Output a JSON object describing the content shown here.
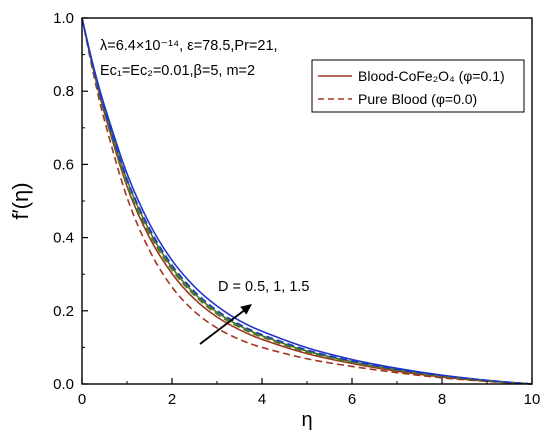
{
  "chart_data": {
    "type": "line",
    "xlabel": "η",
    "ylabel": "f′(η)",
    "xlim": [
      0,
      10
    ],
    "ylim": [
      0,
      1.0
    ],
    "xticks": [
      0,
      2,
      4,
      6,
      8,
      10
    ],
    "yticks": [
      0.0,
      0.2,
      0.4,
      0.6,
      0.8,
      1.0
    ],
    "xtick_labels": [
      "0",
      "2",
      "4",
      "6",
      "8",
      "10"
    ],
    "ytick_labels": [
      "0.0",
      "0.2",
      "0.4",
      "0.6",
      "0.8",
      "1.0"
    ],
    "grid": false,
    "legend_position": "top-right",
    "parameters_line1": "λ=6.4×10⁻¹⁴, ε=78.5,Pr=21,",
    "parameters_line2": "Ec₁=Ec₂=0.01,β=5, m=2",
    "arrow_annotation": "D = 0.5, 1, 1.5",
    "series": [
      {
        "name": "Blood-CoFe₂O₄ (φ=0.1)",
        "style": "solid",
        "color": "#a0361f",
        "D": 0.5,
        "x": [
          0,
          0.25,
          0.5,
          1,
          1.5,
          2,
          2.5,
          3,
          3.5,
          4,
          5,
          6,
          7,
          8,
          9,
          10
        ],
        "y": [
          1.0,
          0.86,
          0.74,
          0.54,
          0.4,
          0.302,
          0.232,
          0.183,
          0.148,
          0.122,
          0.083,
          0.056,
          0.035,
          0.019,
          0.008,
          0.0
        ]
      },
      {
        "style": "solid",
        "color": "#4a7a1e",
        "D": 1,
        "x": [
          0,
          0.25,
          0.5,
          1,
          1.5,
          2,
          2.5,
          3,
          3.5,
          4,
          5,
          6,
          7,
          8,
          9,
          10
        ],
        "y": [
          1.0,
          0.865,
          0.75,
          0.557,
          0.418,
          0.318,
          0.247,
          0.196,
          0.159,
          0.132,
          0.09,
          0.061,
          0.039,
          0.022,
          0.009,
          0.0
        ]
      },
      {
        "style": "solid",
        "color": "#1f35c9",
        "D": 1.5,
        "x": [
          0,
          0.25,
          0.5,
          1,
          1.5,
          2,
          2.5,
          3,
          3.5,
          4,
          5,
          6,
          7,
          8,
          9,
          10
        ],
        "y": [
          1.0,
          0.87,
          0.76,
          0.575,
          0.438,
          0.338,
          0.266,
          0.213,
          0.173,
          0.144,
          0.099,
          0.067,
          0.043,
          0.024,
          0.01,
          0.0
        ]
      },
      {
        "name": "Pure Blood (φ=0.0)",
        "style": "dashed",
        "color": "#a0361f",
        "D": 0.5,
        "x": [
          0,
          0.25,
          0.5,
          1,
          1.5,
          2,
          2.5,
          3,
          3.5,
          4,
          5,
          6,
          7,
          8,
          9,
          10
        ],
        "y": [
          1.0,
          0.85,
          0.72,
          0.51,
          0.365,
          0.265,
          0.198,
          0.153,
          0.122,
          0.1,
          0.069,
          0.048,
          0.031,
          0.017,
          0.007,
          0.0
        ]
      },
      {
        "style": "dashed",
        "color": "#4a7a1e",
        "D": 1,
        "x": [
          0,
          0.25,
          0.5,
          1,
          1.5,
          2,
          2.5,
          3,
          3.5,
          4,
          5,
          6,
          7,
          8,
          9,
          10
        ],
        "y": [
          1.0,
          0.86,
          0.74,
          0.545,
          0.41,
          0.312,
          0.242,
          0.191,
          0.155,
          0.128,
          0.087,
          0.059,
          0.038,
          0.021,
          0.009,
          0.0
        ]
      },
      {
        "style": "dashed",
        "color": "#1f35c9",
        "D": 1.5,
        "x": [
          0,
          0.25,
          0.5,
          1,
          1.5,
          2,
          2.5,
          3,
          3.5,
          4,
          5,
          6,
          7,
          8,
          9,
          10
        ],
        "y": [
          1.0,
          0.865,
          0.75,
          0.56,
          0.425,
          0.325,
          0.253,
          0.201,
          0.163,
          0.135,
          0.093,
          0.063,
          0.04,
          0.023,
          0.01,
          0.0
        ]
      }
    ]
  }
}
